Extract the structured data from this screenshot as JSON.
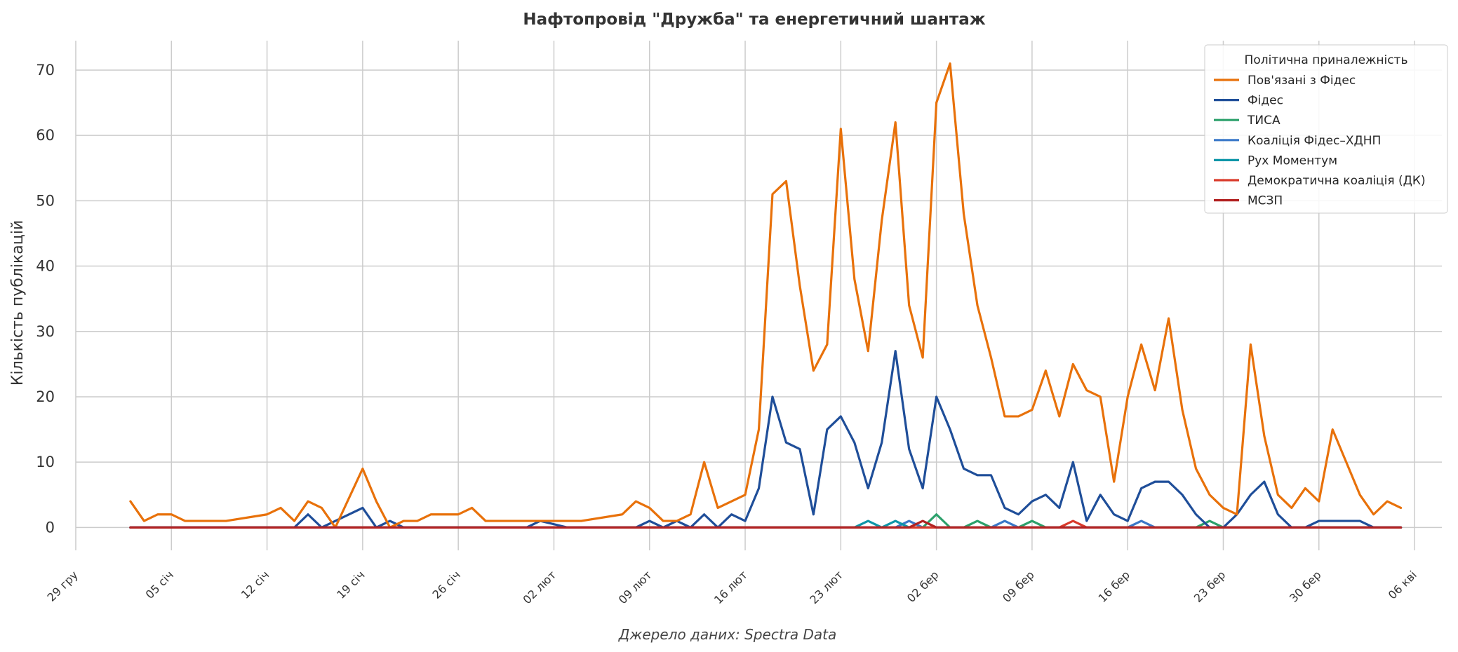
{
  "chart_data": {
    "type": "line",
    "title": "Нафтопровід \"Дружба\" та енергетичний шантаж",
    "ylabel": "Кількість публікацій",
    "xlabel": "",
    "source": "Джерело даних: Spectra Data",
    "ylim": [
      -3.5,
      74.5
    ],
    "xlim": [
      "2025-12-29",
      "2026-04-08"
    ],
    "grid": true,
    "legend_placement": "top-right",
    "legend_title": "Політична приналежність",
    "x_ticks": [
      {
        "date": "2025-12-29",
        "label": "29 гру"
      },
      {
        "date": "2026-01-05",
        "label": "05 січ"
      },
      {
        "date": "2026-01-12",
        "label": "12 січ"
      },
      {
        "date": "2026-01-19",
        "label": "19 січ"
      },
      {
        "date": "2026-01-26",
        "label": "26 січ"
      },
      {
        "date": "2026-02-02",
        "label": "02 лют"
      },
      {
        "date": "2026-02-09",
        "label": "09 лют"
      },
      {
        "date": "2026-02-16",
        "label": "16 лют"
      },
      {
        "date": "2026-02-23",
        "label": "23 лют"
      },
      {
        "date": "2026-03-02",
        "label": "02 бер"
      },
      {
        "date": "2026-03-09",
        "label": "09 бер"
      },
      {
        "date": "2026-03-16",
        "label": "16 бер"
      },
      {
        "date": "2026-03-23",
        "label": "23 бер"
      },
      {
        "date": "2026-03-30",
        "label": "30 бер"
      },
      {
        "date": "2026-04-06",
        "label": "06 кві"
      }
    ],
    "y_ticks": [
      0,
      10,
      20,
      30,
      40,
      50,
      60,
      70
    ],
    "series": [
      {
        "name": "Пов'язані з Фідес",
        "color": "#e8710a",
        "points": [
          [
            "2026-01-02",
            4
          ],
          [
            "2026-01-03",
            1
          ],
          [
            "2026-01-04",
            2
          ],
          [
            "2026-01-05",
            2
          ],
          [
            "2026-01-06",
            1
          ],
          [
            "2026-01-09",
            1
          ],
          [
            "2026-01-12",
            2
          ],
          [
            "2026-01-13",
            3
          ],
          [
            "2026-01-14",
            1
          ],
          [
            "2026-01-15",
            4
          ],
          [
            "2026-01-16",
            3
          ],
          [
            "2026-01-17",
            0
          ],
          [
            "2026-01-19",
            9
          ],
          [
            "2026-01-20",
            4
          ],
          [
            "2026-01-21",
            0
          ],
          [
            "2026-01-22",
            1
          ],
          [
            "2026-01-23",
            1
          ],
          [
            "2026-01-24",
            2
          ],
          [
            "2026-01-26",
            2
          ],
          [
            "2026-01-27",
            3
          ],
          [
            "2026-01-28",
            1
          ],
          [
            "2026-02-04",
            1
          ],
          [
            "2026-02-07",
            2
          ],
          [
            "2026-02-08",
            4
          ],
          [
            "2026-02-09",
            3
          ],
          [
            "2026-02-10",
            1
          ],
          [
            "2026-02-11",
            1
          ],
          [
            "2026-02-12",
            2
          ],
          [
            "2026-02-13",
            10
          ],
          [
            "2026-02-14",
            3
          ],
          [
            "2026-02-16",
            5
          ],
          [
            "2026-02-17",
            15
          ],
          [
            "2026-02-18",
            51
          ],
          [
            "2026-02-19",
            53
          ],
          [
            "2026-02-20",
            37
          ],
          [
            "2026-02-21",
            24
          ],
          [
            "2026-02-22",
            28
          ],
          [
            "2026-02-23",
            61
          ],
          [
            "2026-02-24",
            38
          ],
          [
            "2026-02-25",
            27
          ],
          [
            "2026-02-26",
            47
          ],
          [
            "2026-02-27",
            62
          ],
          [
            "2026-02-28",
            34
          ],
          [
            "2026-03-01",
            26
          ],
          [
            "2026-03-02",
            65
          ],
          [
            "2026-03-03",
            71
          ],
          [
            "2026-03-04",
            48
          ],
          [
            "2026-03-05",
            34
          ],
          [
            "2026-03-06",
            26
          ],
          [
            "2026-03-07",
            17
          ],
          [
            "2026-03-08",
            17
          ],
          [
            "2026-03-09",
            18
          ],
          [
            "2026-03-10",
            24
          ],
          [
            "2026-03-11",
            17
          ],
          [
            "2026-03-12",
            25
          ],
          [
            "2026-03-13",
            21
          ],
          [
            "2026-03-14",
            20
          ],
          [
            "2026-03-15",
            7
          ],
          [
            "2026-03-16",
            20
          ],
          [
            "2026-03-17",
            28
          ],
          [
            "2026-03-18",
            21
          ],
          [
            "2026-03-19",
            32
          ],
          [
            "2026-03-20",
            18
          ],
          [
            "2026-03-21",
            9
          ],
          [
            "2026-03-22",
            5
          ],
          [
            "2026-03-23",
            3
          ],
          [
            "2026-03-24",
            2
          ],
          [
            "2026-03-25",
            28
          ],
          [
            "2026-03-26",
            14
          ],
          [
            "2026-03-27",
            5
          ],
          [
            "2026-03-28",
            3
          ],
          [
            "2026-03-29",
            6
          ],
          [
            "2026-03-30",
            4
          ],
          [
            "2026-03-31",
            15
          ],
          [
            "2026-04-01",
            10
          ],
          [
            "2026-04-02",
            5
          ],
          [
            "2026-04-03",
            2
          ],
          [
            "2026-04-04",
            4
          ],
          [
            "2026-04-05",
            3
          ]
        ]
      },
      {
        "name": "Фідес",
        "color": "#1f4e99",
        "points": [
          [
            "2026-01-02",
            0
          ],
          [
            "2026-01-14",
            0
          ],
          [
            "2026-01-15",
            2
          ],
          [
            "2026-01-16",
            0
          ],
          [
            "2026-01-17",
            1
          ],
          [
            "2026-01-19",
            3
          ],
          [
            "2026-01-20",
            0
          ],
          [
            "2026-01-21",
            1
          ],
          [
            "2026-01-22",
            0
          ],
          [
            "2026-01-31",
            0
          ],
          [
            "2026-02-01",
            1
          ],
          [
            "2026-02-03",
            0
          ],
          [
            "2026-02-08",
            0
          ],
          [
            "2026-02-09",
            1
          ],
          [
            "2026-02-10",
            0
          ],
          [
            "2026-02-11",
            1
          ],
          [
            "2026-02-12",
            0
          ],
          [
            "2026-02-13",
            2
          ],
          [
            "2026-02-14",
            0
          ],
          [
            "2026-02-15",
            2
          ],
          [
            "2026-02-16",
            1
          ],
          [
            "2026-02-17",
            6
          ],
          [
            "2026-02-18",
            20
          ],
          [
            "2026-02-19",
            13
          ],
          [
            "2026-02-20",
            12
          ],
          [
            "2026-02-21",
            2
          ],
          [
            "2026-02-22",
            15
          ],
          [
            "2026-02-23",
            17
          ],
          [
            "2026-02-24",
            13
          ],
          [
            "2026-02-25",
            6
          ],
          [
            "2026-02-26",
            13
          ],
          [
            "2026-02-27",
            27
          ],
          [
            "2026-02-28",
            12
          ],
          [
            "2026-03-01",
            6
          ],
          [
            "2026-03-02",
            20
          ],
          [
            "2026-03-03",
            15
          ],
          [
            "2026-03-04",
            9
          ],
          [
            "2026-03-05",
            8
          ],
          [
            "2026-03-06",
            8
          ],
          [
            "2026-03-07",
            3
          ],
          [
            "2026-03-08",
            2
          ],
          [
            "2026-03-09",
            4
          ],
          [
            "2026-03-10",
            5
          ],
          [
            "2026-03-11",
            3
          ],
          [
            "2026-03-12",
            10
          ],
          [
            "2026-03-13",
            1
          ],
          [
            "2026-03-14",
            5
          ],
          [
            "2026-03-15",
            2
          ],
          [
            "2026-03-16",
            1
          ],
          [
            "2026-03-17",
            6
          ],
          [
            "2026-03-18",
            7
          ],
          [
            "2026-03-19",
            7
          ],
          [
            "2026-03-20",
            5
          ],
          [
            "2026-03-21",
            2
          ],
          [
            "2026-03-22",
            0
          ],
          [
            "2026-03-23",
            0
          ],
          [
            "2026-03-24",
            2
          ],
          [
            "2026-03-25",
            5
          ],
          [
            "2026-03-26",
            7
          ],
          [
            "2026-03-27",
            2
          ],
          [
            "2026-03-28",
            0
          ],
          [
            "2026-03-29",
            0
          ],
          [
            "2026-03-30",
            1
          ],
          [
            "2026-04-02",
            1
          ],
          [
            "2026-04-03",
            0
          ],
          [
            "2026-04-05",
            0
          ]
        ]
      },
      {
        "name": "ТИСА",
        "color": "#2ca06b",
        "points": [
          [
            "2026-01-02",
            0
          ],
          [
            "2026-03-01",
            0
          ],
          [
            "2026-03-02",
            2
          ],
          [
            "2026-03-03",
            0
          ],
          [
            "2026-03-04",
            0
          ],
          [
            "2026-03-05",
            1
          ],
          [
            "2026-03-06",
            0
          ],
          [
            "2026-03-08",
            0
          ],
          [
            "2026-03-09",
            1
          ],
          [
            "2026-03-10",
            0
          ],
          [
            "2026-03-21",
            0
          ],
          [
            "2026-03-22",
            1
          ],
          [
            "2026-03-23",
            0
          ],
          [
            "2026-04-05",
            0
          ]
        ]
      },
      {
        "name": "Коаліція Фідес–ХДНП",
        "color": "#3a78c8",
        "points": [
          [
            "2026-01-02",
            0
          ],
          [
            "2026-02-27",
            0
          ],
          [
            "2026-02-28",
            1
          ],
          [
            "2026-03-01",
            0
          ],
          [
            "2026-03-06",
            0
          ],
          [
            "2026-03-07",
            1
          ],
          [
            "2026-03-08",
            0
          ],
          [
            "2026-03-16",
            0
          ],
          [
            "2026-03-17",
            1
          ],
          [
            "2026-03-18",
            0
          ],
          [
            "2026-04-05",
            0
          ]
        ]
      },
      {
        "name": "Рух Моментум",
        "color": "#0e96a8",
        "points": [
          [
            "2026-01-02",
            0
          ],
          [
            "2026-02-24",
            0
          ],
          [
            "2026-02-25",
            1
          ],
          [
            "2026-02-26",
            0
          ],
          [
            "2026-02-27",
            1
          ],
          [
            "2026-02-28",
            0
          ],
          [
            "2026-04-05",
            0
          ]
        ]
      },
      {
        "name": "Демократична коаліція (ДК)",
        "color": "#d93a2b",
        "points": [
          [
            "2026-01-02",
            0
          ],
          [
            "2026-03-11",
            0
          ],
          [
            "2026-03-12",
            1
          ],
          [
            "2026-03-13",
            0
          ],
          [
            "2026-04-05",
            0
          ]
        ]
      },
      {
        "name": "МСЗП",
        "color": "#b22222",
        "points": [
          [
            "2026-01-02",
            0
          ],
          [
            "2026-02-28",
            0
          ],
          [
            "2026-03-01",
            1
          ],
          [
            "2026-03-02",
            0
          ],
          [
            "2026-04-05",
            0
          ]
        ]
      }
    ]
  }
}
